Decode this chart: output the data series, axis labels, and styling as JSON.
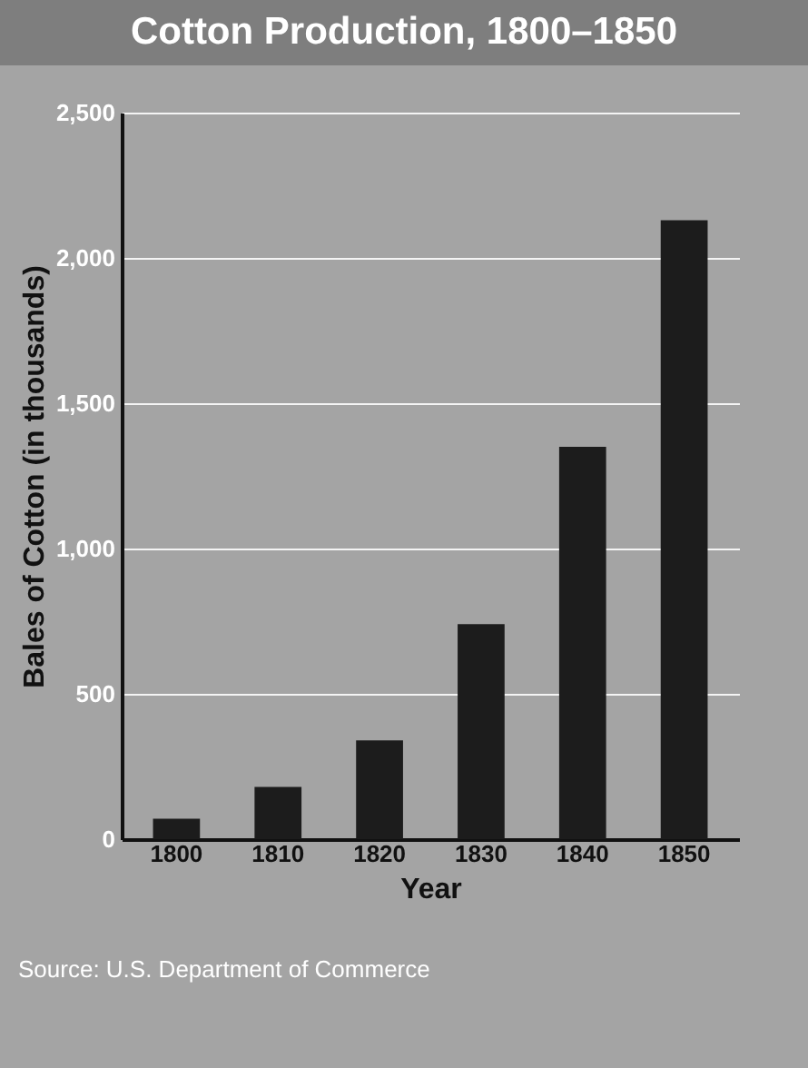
{
  "chart_data": {
    "type": "bar",
    "title": "Cotton Production, 1800–1850",
    "xlabel": "Year",
    "ylabel": "Bales of Cotton (in thousands)",
    "categories": [
      "1800",
      "1810",
      "1820",
      "1830",
      "1840",
      "1850"
    ],
    "values": [
      70,
      180,
      340,
      740,
      1350,
      2130
    ],
    "color": "#1c1c1c",
    "ylim": [
      0,
      2500
    ],
    "yticks": [
      {
        "value": 0,
        "label": "0"
      },
      {
        "value": 500,
        "label": "500"
      },
      {
        "value": 1000,
        "label": "1,000"
      },
      {
        "value": 1500,
        "label": "1,500"
      },
      {
        "value": 2000,
        "label": "2,000"
      },
      {
        "value": 2500,
        "label": "2,500"
      }
    ],
    "grid": "y",
    "annotations": [
      "Source: U.S. Department of Commerce"
    ]
  }
}
